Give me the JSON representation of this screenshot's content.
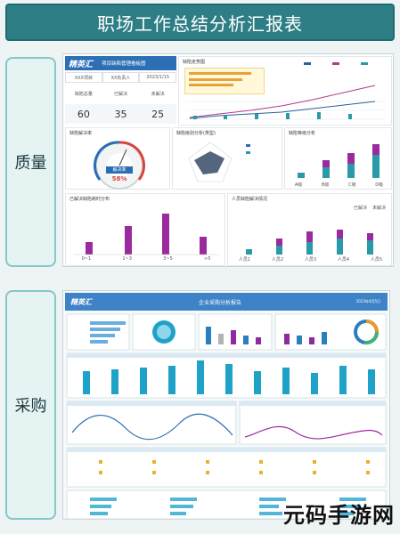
{
  "header": {
    "title": "职场工作总结分析汇报表"
  },
  "sections": [
    {
      "label": "质量"
    },
    {
      "label": "采购"
    }
  ],
  "quality": {
    "logo": "精英汇",
    "board_title": "项目缺陷管理看板图",
    "meta": [
      "XXX项目",
      "XX负责人",
      "2023/1/15"
    ],
    "kpi_labels": [
      "缺陷总量",
      "已解决",
      "未解决"
    ],
    "kpi_values": [
      "60",
      "35",
      "25"
    ],
    "trend_title": "缺陷走势图",
    "gauge_title": "缺陷解决率",
    "gauge_label": "解决率",
    "gauge_value": "58%",
    "radar_title": "缺陷级别分析(类型)",
    "level_title": "缺陷等级分析",
    "level_categories": [
      "A级",
      "B级",
      "C级",
      "D级"
    ],
    "dist_title": "已解决缺陷耗时分布",
    "dist_categories": [
      "0~1",
      "1~3",
      "3~5",
      ">5"
    ],
    "person_title": "人员缺陷解决情况",
    "person_categories": [
      "人员1",
      "人员2",
      "人员3",
      "人员4",
      "人员5"
    ],
    "legend": [
      "已解决",
      "未解决"
    ]
  },
  "purchase": {
    "logo": "精英汇",
    "title": "企业采购分析报告",
    "date": "2023年4月5日"
  },
  "watermark": "元码手游网"
}
